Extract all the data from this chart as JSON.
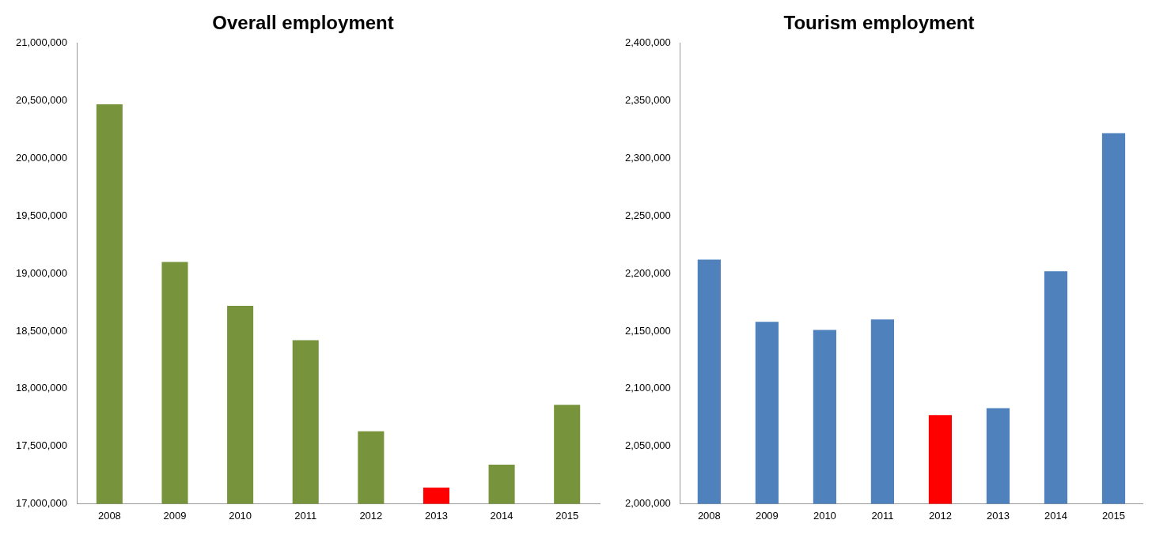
{
  "chart_data": [
    {
      "type": "bar",
      "title": "Overall employment",
      "categories": [
        "2008",
        "2009",
        "2010",
        "2011",
        "2012",
        "2013",
        "2014",
        "2015"
      ],
      "values": [
        20470000,
        19100000,
        18720000,
        18420000,
        17630000,
        17140000,
        17340000,
        17860000
      ],
      "colors": [
        "#77933c",
        "#77933c",
        "#77933c",
        "#77933c",
        "#77933c",
        "#ff0000",
        "#77933c",
        "#77933c"
      ],
      "ylim": [
        17000000,
        21000000
      ],
      "yticks": [
        {
          "value": 17000000,
          "label": "17,000,000"
        },
        {
          "value": 17500000,
          "label": "17,500,000"
        },
        {
          "value": 18000000,
          "label": "18,000,000"
        },
        {
          "value": 18500000,
          "label": "18,500,000"
        },
        {
          "value": 19000000,
          "label": "19,000,000"
        },
        {
          "value": 19500000,
          "label": "19,500,000"
        },
        {
          "value": 20000000,
          "label": "20,000,000"
        },
        {
          "value": 20500000,
          "label": "20,500,000"
        },
        {
          "value": 21000000,
          "label": "21,000,000"
        }
      ],
      "grid": false,
      "legend": false
    },
    {
      "type": "bar",
      "title": "Tourism employment",
      "categories": [
        "2008",
        "2009",
        "2010",
        "2011",
        "2012",
        "2013",
        "2014",
        "2015"
      ],
      "values": [
        2212000,
        2158000,
        2151000,
        2160000,
        2077000,
        2083000,
        2202000,
        2322000
      ],
      "colors": [
        "#4f81bd",
        "#4f81bd",
        "#4f81bd",
        "#4f81bd",
        "#ff0000",
        "#4f81bd",
        "#4f81bd",
        "#4f81bd"
      ],
      "ylim": [
        2000000,
        2400000
      ],
      "yticks": [
        {
          "value": 2000000,
          "label": "2,000,000"
        },
        {
          "value": 2050000,
          "label": "2,050,000"
        },
        {
          "value": 2100000,
          "label": "2,100,000"
        },
        {
          "value": 2150000,
          "label": "2,150,000"
        },
        {
          "value": 2200000,
          "label": "2,200,000"
        },
        {
          "value": 2250000,
          "label": "2,250,000"
        },
        {
          "value": 2300000,
          "label": "2,300,000"
        },
        {
          "value": 2350000,
          "label": "2,350,000"
        },
        {
          "value": 2400000,
          "label": "2,400,000"
        }
      ],
      "grid": false,
      "legend": false
    }
  ]
}
